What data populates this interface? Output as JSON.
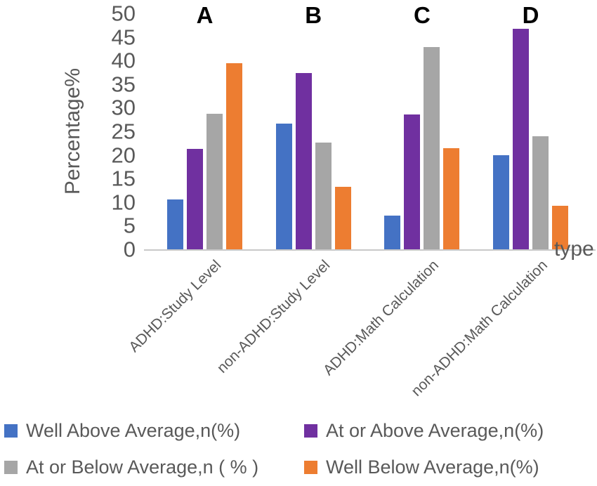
{
  "chart_data": {
    "type": "bar",
    "title": "",
    "ylabel": "Percentage%",
    "xlabel": "type",
    "ylim": [
      0,
      50
    ],
    "yticks": [
      0,
      5,
      10,
      15,
      20,
      25,
      30,
      35,
      40,
      45,
      50
    ],
    "grid": false,
    "legend_position": "bottom",
    "group_annotations": [
      "A",
      "B",
      "C",
      "D"
    ],
    "categories": [
      "ADHD:Study Level",
      "non-ADHD:Study Level",
      "ADHD:Math Calculation",
      "non-ADHD:Math Calculation"
    ],
    "series": [
      {
        "name": "Well Above Average,n(%)",
        "color": "#4472C4",
        "values": [
          10.6,
          26.7,
          7.1,
          20.0
        ]
      },
      {
        "name": "At or Above Average,n(%)",
        "color": "#7030A0",
        "values": [
          21.3,
          37.4,
          28.6,
          46.7
        ]
      },
      {
        "name": "At or Below Average,n ( % )",
        "color": "#A6A6A6",
        "values": [
          28.7,
          22.6,
          42.9,
          24.0
        ]
      },
      {
        "name": "Well Below Average,n(%)",
        "color": "#ED7D31",
        "values": [
          39.4,
          13.3,
          21.4,
          9.3
        ]
      }
    ],
    "colors": {
      "axis_line": "#c9c9c9",
      "text": "#595959",
      "annotation": "#000000",
      "background": "#ffffff"
    }
  }
}
